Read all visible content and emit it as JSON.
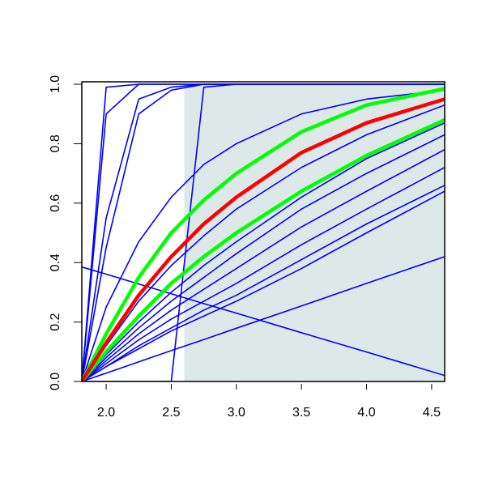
{
  "chart_data": {
    "type": "line",
    "x": [
      1.813,
      2.0,
      2.25,
      2.5,
      2.75,
      3.0,
      3.5,
      4.0,
      4.6
    ],
    "xlim": [
      1.813,
      4.6
    ],
    "ylim": [
      0,
      1
    ],
    "xticks": [
      {
        "value": 2,
        "label": "2.0"
      },
      {
        "value": 2.5,
        "label": "2.5"
      },
      {
        "value": 3,
        "label": "3.0"
      },
      {
        "value": 3.5,
        "label": "3.5"
      },
      {
        "value": 4,
        "label": "4.0"
      },
      {
        "value": 4.5,
        "label": "4.5"
      }
    ],
    "yticks": [
      {
        "value": 0,
        "label": "0.0"
      },
      {
        "value": 0.2,
        "label": "0.2"
      },
      {
        "value": 0.4,
        "label": "0.4"
      },
      {
        "value": 0.6,
        "label": "0.6"
      },
      {
        "value": 0.8,
        "label": "0.8"
      },
      {
        "value": 1,
        "label": "1.0"
      }
    ],
    "shaded_region": {
      "xlim": [
        2.6,
        4.6
      ],
      "ylim": [
        0,
        1
      ],
      "color": "#dde9e9"
    },
    "series": [
      {
        "color": "#0000ff",
        "values": [
          0,
          0.99,
          1,
          1,
          1,
          1,
          1,
          1,
          1
        ]
      },
      {
        "color": "#0000ff",
        "values": [
          0,
          0.9,
          1,
          1,
          1,
          1,
          1,
          1,
          1
        ]
      },
      {
        "color": "#0000ff",
        "values": [
          0,
          0.55,
          0.95,
          0.99,
          1,
          1,
          1,
          1,
          1
        ]
      },
      {
        "color": "#0000ff",
        "values": [
          0,
          0.45,
          0.9,
          0.98,
          1,
          1,
          1,
          1,
          1
        ]
      },
      {
        "color": "#0000ff",
        "values": [
          0,
          0,
          0,
          0,
          0.99,
          1,
          1,
          1,
          1
        ]
      },
      {
        "color": "#0000ff",
        "values": [
          0,
          0.25,
          0.47,
          0.62,
          0.73,
          0.8,
          0.9,
          0.95,
          0.98
        ]
      },
      {
        "color": "#0000ff",
        "values": [
          0,
          0.12,
          0.27,
          0.39,
          0.49,
          0.58,
          0.72,
          0.83,
          0.93
        ]
      },
      {
        "color": "#0000ff",
        "values": [
          0,
          0.09,
          0.2,
          0.3,
          0.39,
          0.47,
          0.62,
          0.75,
          0.87
        ]
      },
      {
        "color": "#0000ff",
        "values": [
          0,
          0.08,
          0.18,
          0.27,
          0.35,
          0.43,
          0.58,
          0.7,
          0.83
        ]
      },
      {
        "color": "#0000ff",
        "values": [
          0,
          0.07,
          0.16,
          0.24,
          0.31,
          0.38,
          0.52,
          0.64,
          0.78
        ]
      },
      {
        "color": "#0000ff",
        "values": [
          0,
          0.06,
          0.14,
          0.21,
          0.27,
          0.33,
          0.46,
          0.58,
          0.72
        ]
      },
      {
        "color": "#0000ff",
        "values": [
          0,
          0.05,
          0.12,
          0.18,
          0.24,
          0.29,
          0.41,
          0.53,
          0.66
        ]
      },
      {
        "color": "#0000ff",
        "values": [
          0,
          0.05,
          0.11,
          0.17,
          0.22,
          0.27,
          0.38,
          0.5,
          0.64
        ]
      },
      {
        "color": "#0000ff",
        "values": [
          0.385,
          0.361,
          0.328,
          0.295,
          0.262,
          0.23,
          0.164,
          0.099,
          0.02
        ]
      },
      {
        "color": "#0000ff",
        "values": [
          0,
          0.028,
          0.066,
          0.104,
          0.141,
          0.179,
          0.254,
          0.33,
          0.42
        ]
      },
      {
        "color": "#00ff00",
        "values": [
          0,
          0.16,
          0.35,
          0.5,
          0.61,
          0.7,
          0.84,
          0.93,
          0.985
        ]
      },
      {
        "color": "#00ff00",
        "values": [
          0,
          0.1,
          0.22,
          0.33,
          0.42,
          0.5,
          0.64,
          0.76,
          0.88
        ]
      },
      {
        "color": "#ff0000",
        "values": [
          0,
          0.13,
          0.29,
          0.42,
          0.53,
          0.62,
          0.77,
          0.87,
          0.95
        ]
      }
    ]
  }
}
